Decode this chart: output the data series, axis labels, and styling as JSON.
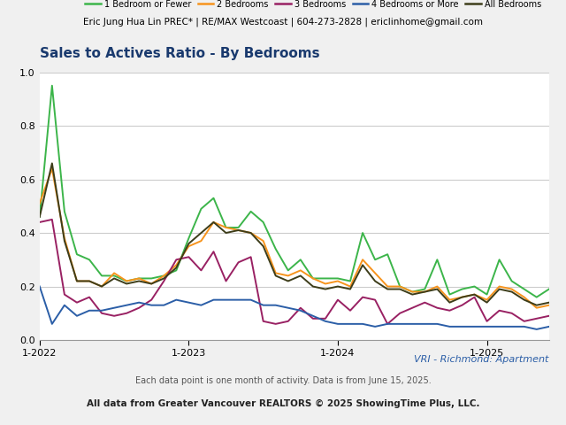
{
  "header": "Eric Jung Hua Lin PREC* | RE/MAX Westcoast | 604-273-2828 | ericlinhome@gmail.com",
  "title": "Sales to Actives Ratio - By Bedrooms",
  "subtitle_right": "VRI - Richmond: Apartment",
  "footnote1": "Each data point is one month of activity. Data is from June 15, 2025.",
  "footnote2": "All data from Greater Vancouver REALTORS © 2025 ShowingTime Plus, LLC.",
  "ylim": [
    0.0,
    1.0
  ],
  "yticks": [
    0.0,
    0.2,
    0.4,
    0.6,
    0.8,
    1.0
  ],
  "x_tick_labels": [
    "1-2022",
    "1-2023",
    "1-2024",
    "1-2025"
  ],
  "legend_labels": [
    "1 Bedroom or Fewer",
    "2 Bedrooms",
    "3 Bedrooms",
    "4 Bedrooms or More",
    "All Bedrooms"
  ],
  "colors": {
    "1bed": "#3cb54a",
    "2bed": "#f7941d",
    "3bed": "#992163",
    "4bed": "#2b5ea7",
    "all": "#3d3d1a"
  },
  "series": {
    "1bed": [
      0.46,
      0.95,
      0.48,
      0.32,
      0.3,
      0.24,
      0.24,
      0.22,
      0.23,
      0.23,
      0.24,
      0.26,
      0.38,
      0.49,
      0.53,
      0.42,
      0.42,
      0.48,
      0.44,
      0.34,
      0.26,
      0.3,
      0.23,
      0.23,
      0.23,
      0.22,
      0.4,
      0.3,
      0.32,
      0.2,
      0.18,
      0.19,
      0.3,
      0.17,
      0.19,
      0.2,
      0.17,
      0.3,
      0.22,
      0.19,
      0.16,
      0.19
    ],
    "2bed": [
      0.51,
      0.64,
      0.38,
      0.22,
      0.22,
      0.2,
      0.25,
      0.22,
      0.23,
      0.21,
      0.24,
      0.28,
      0.35,
      0.37,
      0.44,
      0.42,
      0.41,
      0.4,
      0.37,
      0.25,
      0.24,
      0.26,
      0.23,
      0.21,
      0.22,
      0.2,
      0.3,
      0.25,
      0.2,
      0.2,
      0.18,
      0.18,
      0.2,
      0.15,
      0.16,
      0.17,
      0.15,
      0.2,
      0.19,
      0.16,
      0.12,
      0.13
    ],
    "3bed": [
      0.44,
      0.45,
      0.17,
      0.14,
      0.16,
      0.1,
      0.09,
      0.1,
      0.12,
      0.15,
      0.22,
      0.3,
      0.31,
      0.26,
      0.33,
      0.22,
      0.29,
      0.31,
      0.07,
      0.06,
      0.07,
      0.12,
      0.08,
      0.08,
      0.15,
      0.11,
      0.16,
      0.15,
      0.06,
      0.1,
      0.12,
      0.14,
      0.12,
      0.11,
      0.13,
      0.16,
      0.07,
      0.11,
      0.1,
      0.07,
      0.08,
      0.09
    ],
    "4bed": [
      0.2,
      0.06,
      0.13,
      0.09,
      0.11,
      0.11,
      0.12,
      0.13,
      0.14,
      0.13,
      0.13,
      0.15,
      0.14,
      0.13,
      0.15,
      0.15,
      0.15,
      0.15,
      0.13,
      0.13,
      0.12,
      0.11,
      0.09,
      0.07,
      0.06,
      0.06,
      0.06,
      0.05,
      0.06,
      0.06,
      0.06,
      0.06,
      0.06,
      0.05,
      0.05,
      0.05,
      0.05,
      0.05,
      0.05,
      0.05,
      0.04,
      0.05
    ],
    "all": [
      0.46,
      0.66,
      0.37,
      0.22,
      0.22,
      0.2,
      0.23,
      0.21,
      0.22,
      0.21,
      0.23,
      0.27,
      0.36,
      0.4,
      0.44,
      0.4,
      0.41,
      0.4,
      0.35,
      0.24,
      0.22,
      0.24,
      0.2,
      0.19,
      0.2,
      0.19,
      0.28,
      0.22,
      0.19,
      0.19,
      0.17,
      0.18,
      0.19,
      0.14,
      0.16,
      0.17,
      0.14,
      0.19,
      0.18,
      0.15,
      0.13,
      0.14
    ]
  },
  "n_months": 42,
  "bg_color": "#f0f0f0",
  "header_bg": "#e0e0e0",
  "plot_bg": "#ffffff"
}
